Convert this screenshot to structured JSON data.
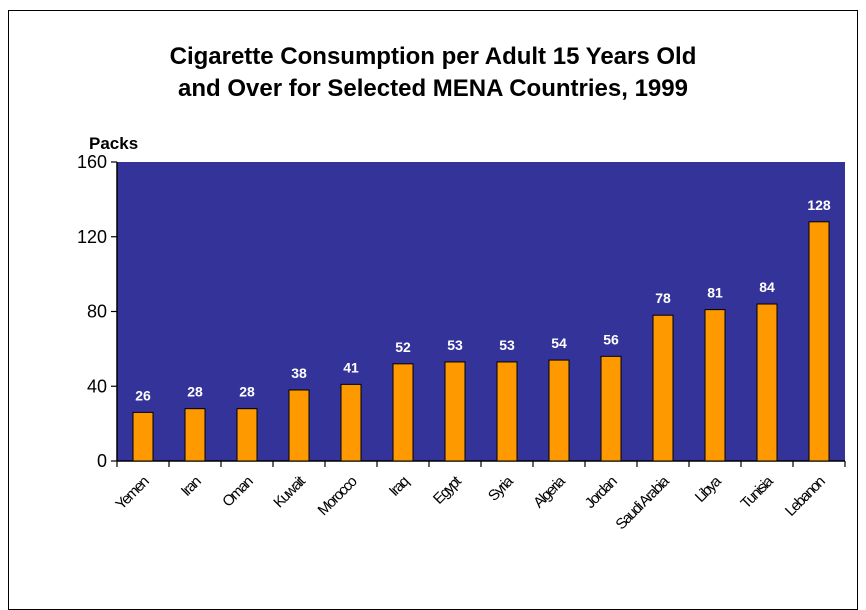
{
  "chart_data": {
    "type": "bar",
    "title_line1": "Cigarette Consumption per Adult 15 Years Old",
    "title_line2": "and Over for Selected MENA Countries, 1999",
    "ylabel": "Packs",
    "xlabel": "",
    "ylim": [
      0,
      160
    ],
    "yticks": [
      0,
      40,
      80,
      120,
      160
    ],
    "categories": [
      "Yemen",
      "Iran",
      "Oman",
      "Kuwait",
      "Morocco",
      "Iraq",
      "Egypt",
      "Syria",
      "Algeria",
      "Jordan",
      "Saudi Arabia",
      "Libya",
      "Tunisia",
      "Lebanon"
    ],
    "values": [
      26,
      28,
      28,
      38,
      41,
      52,
      53,
      53,
      54,
      56,
      78,
      81,
      84,
      128
    ],
    "grid": false,
    "legend": "none",
    "colors": {
      "plot_background": "#333399",
      "bar": "#FF9900",
      "value_label": "#FFFFFF"
    }
  }
}
